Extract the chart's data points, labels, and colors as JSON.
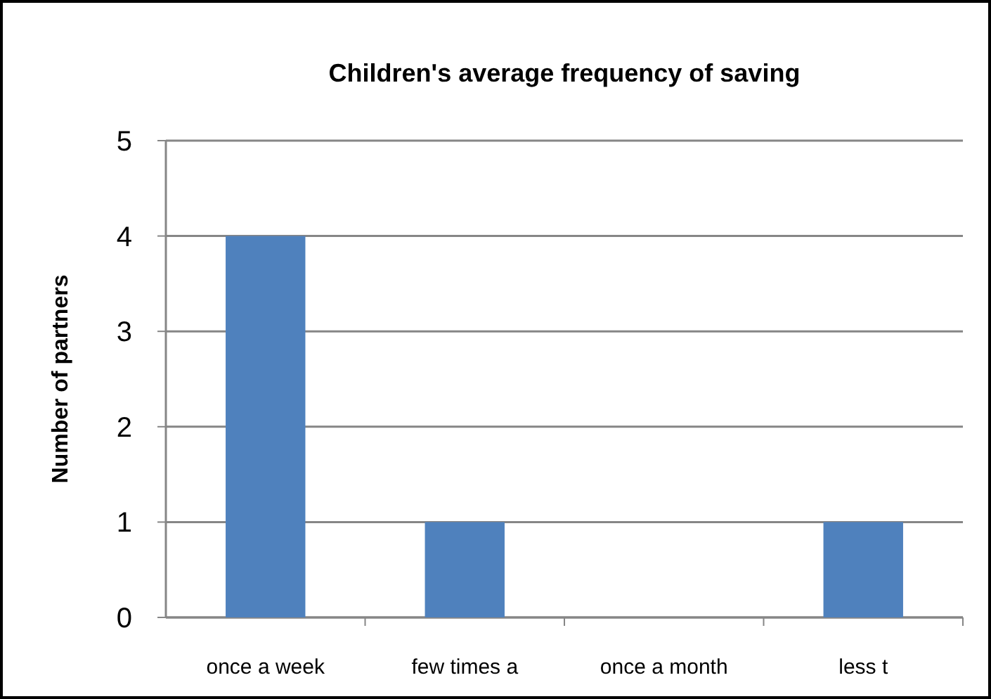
{
  "chart_data": {
    "type": "bar",
    "title": "Children's average frequency of saving",
    "ylabel": "Number of partners",
    "categories": [
      "once a week",
      "few times a",
      "once a month",
      "less t"
    ],
    "values": [
      4,
      1,
      0,
      1
    ],
    "color": "#4f81bd",
    "ylim": [
      0,
      5
    ],
    "yticks": [
      0,
      1,
      2,
      3,
      4,
      5
    ],
    "grid": "y"
  }
}
